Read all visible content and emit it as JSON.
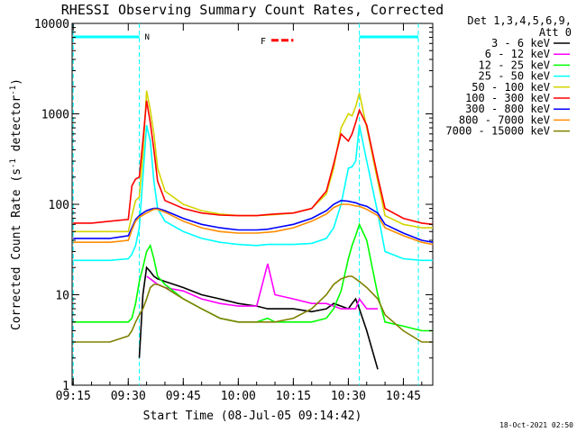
{
  "chart_data": {
    "type": "line",
    "title": "RHESSI Observing Summary Count Rates, Corrected",
    "xlabel": "Start Time (08-Jul-05 09:14:42)",
    "ylabel_main": "Corrected Count Rate (s",
    "ylabel_sup1": "-1",
    "ylabel_mid": " detector",
    "ylabel_sup2": "-1",
    "ylabel_end": ")",
    "y_scale": "log",
    "ylim": [
      1,
      10000
    ],
    "xlim": [
      "09:15",
      "10:53"
    ],
    "x_ticks": [
      "09:15",
      "09:30",
      "09:45",
      "10:00",
      "10:15",
      "10:30",
      "10:45"
    ],
    "y_ticks": [
      "1",
      "10",
      "100",
      "1000",
      "10000"
    ],
    "legend_header": [
      "Det 1,3,4,5,6,9,",
      "Att 0"
    ],
    "legend_placement": "right",
    "timestamp": "18-Oct-2021 02:50",
    "flags": {
      "night_bar": {
        "label": "N",
        "color": "#00ffff"
      },
      "flare_marker": {
        "label": "F",
        "color": "#ff0000"
      }
    },
    "night_intervals": [
      [
        "09:15",
        "09:33"
      ],
      [
        "10:33",
        "10:53"
      ]
    ],
    "x": [
      "09:15",
      "09:20",
      "09:25",
      "09:30",
      "09:31",
      "09:32",
      "09:33",
      "09:34",
      "09:35",
      "09:36",
      "09:37",
      "09:38",
      "09:40",
      "09:45",
      "09:50",
      "09:55",
      "10:00",
      "10:05",
      "10:08",
      "10:10",
      "10:15",
      "10:20",
      "10:24",
      "10:26",
      "10:28",
      "10:30",
      "10:31",
      "10:32",
      "10:33",
      "10:35",
      "10:38",
      "10:40",
      "10:45",
      "10:50",
      "10:53"
    ],
    "series": [
      {
        "name": "3 - 6 keV",
        "color": "#000000",
        "values": [
          null,
          null,
          null,
          null,
          null,
          null,
          2,
          10,
          20,
          18,
          16,
          15,
          14,
          12,
          10,
          9,
          8,
          7.5,
          7,
          7,
          7,
          6.5,
          7,
          8,
          7.5,
          7,
          8,
          9,
          7,
          4,
          1.5,
          null,
          null,
          null,
          null
        ]
      },
      {
        "name": "6 - 12 keV",
        "color": "#ff00ff",
        "values": [
          null,
          null,
          null,
          null,
          null,
          null,
          null,
          null,
          16,
          15,
          14,
          13,
          12,
          11,
          9,
          8,
          7.5,
          7.5,
          22,
          10,
          9,
          8,
          8,
          7.5,
          7,
          7,
          7,
          7,
          9,
          7,
          7,
          null,
          null,
          null,
          null
        ]
      },
      {
        "name": "12 - 25 keV",
        "color": "#00ff00",
        "values": [
          5,
          5,
          5,
          5,
          5.5,
          8,
          14,
          20,
          30,
          35,
          25,
          16,
          13,
          9,
          7,
          5.5,
          5,
          5,
          5.5,
          5,
          5,
          5,
          5.5,
          7,
          11,
          25,
          35,
          45,
          60,
          40,
          10,
          5,
          4.5,
          4,
          4
        ]
      },
      {
        "name": "25 - 50 keV",
        "color": "#00ffff",
        "values": [
          24,
          24,
          24,
          25,
          28,
          35,
          55,
          200,
          750,
          500,
          180,
          90,
          65,
          50,
          42,
          38,
          36,
          35,
          36,
          36,
          36,
          37,
          42,
          55,
          100,
          250,
          260,
          300,
          750,
          300,
          80,
          30,
          25,
          24,
          24
        ]
      },
      {
        "name": "50 - 100 keV",
        "color": "#d4d400",
        "values": [
          50,
          50,
          50,
          50,
          75,
          110,
          120,
          350,
          1800,
          1100,
          600,
          250,
          140,
          100,
          85,
          78,
          75,
          75,
          76,
          77,
          80,
          90,
          130,
          250,
          700,
          1000,
          950,
          1200,
          1700,
          700,
          180,
          75,
          60,
          55,
          55
        ]
      },
      {
        "name": "100 - 300 keV",
        "color": "#ff0000",
        "values": [
          62,
          62,
          65,
          68,
          160,
          190,
          200,
          500,
          1400,
          800,
          400,
          180,
          110,
          90,
          80,
          76,
          75,
          75,
          77,
          78,
          80,
          90,
          140,
          280,
          600,
          500,
          600,
          800,
          1100,
          750,
          200,
          90,
          70,
          62,
          60
        ]
      },
      {
        "name": "300 - 800 keV",
        "color": "#0000ff",
        "values": [
          42,
          42,
          42,
          45,
          55,
          68,
          75,
          80,
          85,
          88,
          90,
          90,
          85,
          70,
          60,
          55,
          52,
          52,
          53,
          55,
          60,
          70,
          85,
          100,
          110,
          108,
          106,
          104,
          100,
          95,
          80,
          60,
          48,
          40,
          38
        ]
      },
      {
        "name": "800 - 7000 keV",
        "color": "#ff8c00",
        "values": [
          38,
          38,
          38,
          40,
          52,
          65,
          72,
          76,
          80,
          84,
          88,
          88,
          82,
          65,
          55,
          50,
          48,
          48,
          49,
          50,
          55,
          65,
          78,
          92,
          100,
          100,
          98,
          96,
          95,
          88,
          75,
          55,
          45,
          38,
          36
        ]
      },
      {
        "name": "7000 - 15000 keV",
        "color": "#808000",
        "values": [
          3,
          3,
          3,
          3.5,
          4,
          5,
          6,
          7,
          9,
          12,
          13,
          13,
          12,
          9,
          7,
          5.5,
          5,
          5,
          5,
          5,
          5.5,
          7,
          10,
          13,
          15,
          16,
          16,
          15,
          14,
          12,
          9,
          6,
          4,
          3,
          3
        ]
      }
    ],
    "flare_marker_x": [
      "10:09",
      "10:15"
    ],
    "flare_marker_y": 6500
  }
}
